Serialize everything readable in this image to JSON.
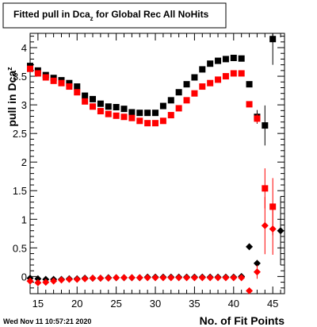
{
  "window": {
    "timestamp": "Wed Nov 11 10:57:21 2020"
  },
  "chart_data": {
    "type": "scatter",
    "title": "Fitted pull in Dca_z for Global Rec All NoHits",
    "title_main": "Fitted pull in Dca",
    "title_sub": "z",
    "title_rest": " for Global Rec All NoHits",
    "xlabel": "No. of Fit Points",
    "ylabel": "pull in Dca",
    "ylabel_sub": "z",
    "xlim": [
      14,
      46.5
    ],
    "ylim": [
      -0.3,
      4.25
    ],
    "x_ticks": [
      15,
      20,
      25,
      30,
      35,
      40,
      45
    ],
    "y_ticks": [
      0,
      0.5,
      1,
      1.5,
      2,
      2.5,
      3,
      3.5,
      4
    ],
    "x_tick_labels": [
      "15",
      "20",
      "25",
      "30",
      "35",
      "40",
      "45"
    ],
    "y_tick_labels": [
      "0",
      "0.5",
      "1",
      "1.5",
      "2",
      "2.5",
      "3",
      "3.5",
      "4"
    ],
    "grid": false,
    "series": [
      {
        "marker": "square",
        "color": "#000000",
        "x": [
          14,
          15,
          16,
          17,
          18,
          19,
          20,
          21,
          22,
          23,
          24,
          25,
          26,
          27,
          28,
          29,
          30,
          31,
          32,
          33,
          34,
          35,
          36,
          37,
          38,
          39,
          40,
          41,
          42,
          43,
          44,
          45
        ],
        "y": [
          3.68,
          3.6,
          3.52,
          3.47,
          3.43,
          3.38,
          3.32,
          3.16,
          3.1,
          3.02,
          2.97,
          2.96,
          2.93,
          2.87,
          2.86,
          2.86,
          2.86,
          2.98,
          3.08,
          3.22,
          3.36,
          3.48,
          3.62,
          3.72,
          3.77,
          3.8,
          3.82,
          3.81,
          3.36,
          2.79,
          2.64,
          4.15
        ],
        "yerr": [
          0,
          0,
          0,
          0,
          0,
          0,
          0,
          0,
          0,
          0,
          0,
          0,
          0,
          0,
          0,
          0,
          0,
          0,
          0,
          0,
          0,
          0,
          0,
          0,
          0,
          0,
          0,
          0,
          0.05,
          0.12,
          0.35,
          0.45
        ]
      },
      {
        "marker": "square",
        "color": "#ff0000",
        "x": [
          14,
          15,
          16,
          17,
          18,
          19,
          20,
          21,
          22,
          23,
          24,
          25,
          26,
          27,
          28,
          29,
          30,
          31,
          32,
          33,
          34,
          35,
          36,
          37,
          38,
          39,
          40,
          41,
          42,
          43,
          44,
          45
        ],
        "y": [
          3.63,
          3.55,
          3.48,
          3.42,
          3.38,
          3.32,
          3.22,
          3.06,
          2.97,
          2.89,
          2.84,
          2.81,
          2.79,
          2.77,
          2.72,
          2.68,
          2.68,
          2.72,
          2.82,
          2.94,
          3.08,
          3.2,
          3.32,
          3.38,
          3.44,
          3.5,
          3.55,
          3.55,
          3.01,
          2.76,
          1.54,
          1.22
        ],
        "yerr": [
          0,
          0,
          0,
          0,
          0,
          0,
          0,
          0,
          0,
          0,
          0,
          0,
          0,
          0,
          0,
          0,
          0,
          0,
          0,
          0,
          0,
          0,
          0,
          0,
          0,
          0,
          0,
          0,
          0.05,
          0.08,
          0.35,
          0.5
        ]
      },
      {
        "marker": "diamond",
        "color": "#000000",
        "x": [
          14,
          15,
          16,
          17,
          18,
          19,
          20,
          21,
          22,
          23,
          24,
          25,
          26,
          27,
          28,
          29,
          30,
          31,
          32,
          33,
          34,
          35,
          36,
          37,
          38,
          39,
          40,
          41,
          42,
          43,
          46
        ],
        "y": [
          -0.03,
          -0.04,
          -0.05,
          -0.05,
          -0.05,
          -0.04,
          -0.04,
          -0.03,
          -0.03,
          -0.03,
          -0.02,
          -0.02,
          -0.02,
          -0.02,
          -0.02,
          -0.01,
          -0.01,
          -0.01,
          -0.01,
          -0.01,
          -0.01,
          -0.01,
          -0.01,
          -0.01,
          -0.01,
          -0.01,
          -0.01,
          0.0,
          0.52,
          0.23,
          0.8
        ],
        "yerr": [
          0,
          0,
          0,
          0,
          0,
          0,
          0,
          0,
          0,
          0,
          0,
          0,
          0,
          0,
          0,
          0,
          0,
          0,
          0,
          0,
          0,
          0,
          0,
          0,
          0,
          0,
          0,
          0,
          0.03,
          0.05,
          0.6
        ]
      },
      {
        "marker": "diamond",
        "color": "#ff0000",
        "x": [
          14,
          15,
          16,
          17,
          18,
          19,
          20,
          21,
          22,
          23,
          24,
          25,
          26,
          27,
          28,
          29,
          30,
          31,
          32,
          33,
          34,
          35,
          36,
          37,
          38,
          39,
          40,
          41,
          42,
          43,
          44,
          45
        ],
        "y": [
          -0.08,
          -0.11,
          -0.1,
          -0.08,
          -0.06,
          -0.05,
          -0.05,
          -0.04,
          -0.03,
          -0.03,
          -0.03,
          -0.02,
          -0.02,
          -0.02,
          -0.02,
          -0.02,
          -0.02,
          -0.02,
          -0.02,
          -0.02,
          -0.02,
          -0.02,
          -0.02,
          -0.02,
          -0.02,
          -0.02,
          -0.02,
          -0.02,
          -0.25,
          0.08,
          0.89,
          0.83
        ],
        "yerr": [
          0,
          0,
          0,
          0,
          0,
          0,
          0,
          0,
          0,
          0,
          0,
          0,
          0,
          0,
          0,
          0,
          0,
          0,
          0,
          0,
          0,
          0,
          0,
          0,
          0,
          0,
          0,
          0,
          0.03,
          0.12,
          0.5,
          0.45
        ]
      }
    ]
  }
}
